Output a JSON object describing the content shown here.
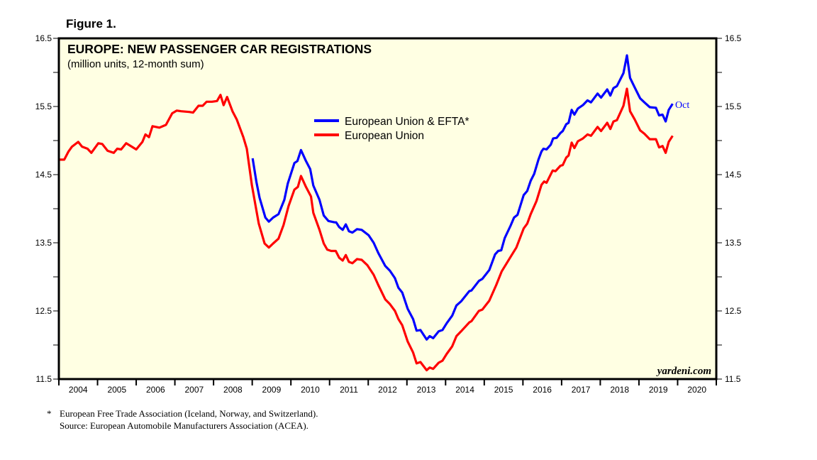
{
  "figure_label": "Figure 1.",
  "chart_data": {
    "type": "line",
    "title": "EUROPE: NEW PASSENGER CAR REGISTRATIONS",
    "subtitle": "(million units, 12-month sum)",
    "xlabel": "",
    "ylabel": "",
    "xlim": [
      2004,
      2021
    ],
    "ylim": [
      11.5,
      16.5
    ],
    "x_tick_labels": [
      "2004",
      "2005",
      "2006",
      "2007",
      "2008",
      "2009",
      "2010",
      "2011",
      "2012",
      "2013",
      "2014",
      "2015",
      "2016",
      "2017",
      "2018",
      "2019",
      "2020"
    ],
    "y_tick_labels": [
      "16.5",
      "15.5",
      "14.5",
      "13.5",
      "12.5",
      "11.5"
    ],
    "y_axes": "left and right",
    "grid": false,
    "background": "#FFFFE3",
    "legend_placement": "upper-center",
    "end_label": "Oct",
    "watermark": "yardeni.com",
    "series": [
      {
        "name": "European Union & EFTA*",
        "color": "#0000FF",
        "x": [
          2009.01,
          2009.11,
          2009.19,
          2009.34,
          2009.43,
          2009.54,
          2009.68,
          2009.83,
          2009.92,
          2010.09,
          2010.17,
          2010.26,
          2010.39,
          2010.5,
          2010.58,
          2010.74,
          2010.85,
          2010.97,
          2011.13,
          2011.17,
          2011.25,
          2011.34,
          2011.42,
          2011.5,
          2011.59,
          2011.71,
          2011.83,
          2012.01,
          2012.14,
          2012.26,
          2012.44,
          2012.56,
          2012.69,
          2012.78,
          2012.88,
          2013.02,
          2013.16,
          2013.25,
          2013.35,
          2013.51,
          2013.59,
          2013.68,
          2013.82,
          2013.92,
          2014.03,
          2014.17,
          2014.28,
          2014.4,
          2014.61,
          2014.67,
          2014.86,
          2014.95,
          2015.13,
          2015.28,
          2015.36,
          2015.44,
          2015.53,
          2015.68,
          2015.77,
          2015.86,
          2016.02,
          2016.11,
          2016.2,
          2016.29,
          2016.4,
          2016.48,
          2016.53,
          2016.61,
          2016.72,
          2016.78,
          2016.87,
          2016.97,
          2017.03,
          2017.12,
          2017.18,
          2017.26,
          2017.33,
          2017.42,
          2017.55,
          2017.67,
          2017.76,
          2017.93,
          2018.02,
          2018.18,
          2018.26,
          2018.34,
          2018.43,
          2018.6,
          2018.69,
          2018.77,
          2018.89,
          2019.03,
          2019.14,
          2019.28,
          2019.44,
          2019.52,
          2019.61,
          2019.69,
          2019.77,
          2019.87
        ],
        "y": [
          14.74,
          14.39,
          14.16,
          13.87,
          13.81,
          13.87,
          13.92,
          14.13,
          14.37,
          14.67,
          14.7,
          14.86,
          14.7,
          14.58,
          14.34,
          14.13,
          13.9,
          13.82,
          13.8,
          13.8,
          13.73,
          13.69,
          13.77,
          13.67,
          13.65,
          13.7,
          13.69,
          13.61,
          13.5,
          13.35,
          13.16,
          13.09,
          12.98,
          12.84,
          12.77,
          12.53,
          12.38,
          12.21,
          12.22,
          12.08,
          12.13,
          12.1,
          12.2,
          12.22,
          12.32,
          12.43,
          12.58,
          12.64,
          12.79,
          12.8,
          12.94,
          12.97,
          13.1,
          13.33,
          13.38,
          13.39,
          13.57,
          13.75,
          13.87,
          13.91,
          14.2,
          14.26,
          14.41,
          14.51,
          14.72,
          14.84,
          14.88,
          14.87,
          14.94,
          15.03,
          15.04,
          15.11,
          15.14,
          15.24,
          15.26,
          15.45,
          15.38,
          15.47,
          15.52,
          15.59,
          15.56,
          15.69,
          15.63,
          15.75,
          15.66,
          15.77,
          15.8,
          15.99,
          16.25,
          15.92,
          15.78,
          15.62,
          15.56,
          15.49,
          15.48,
          15.37,
          15.38,
          15.28,
          15.45,
          15.54
        ]
      },
      {
        "name": "European Union",
        "color": "#FF0000",
        "x": [
          2004.0,
          2004.14,
          2004.25,
          2004.34,
          2004.5,
          2004.6,
          2004.74,
          2004.84,
          2005.02,
          2005.12,
          2005.26,
          2005.42,
          2005.51,
          2005.61,
          2005.74,
          2006.0,
          2006.16,
          2006.24,
          2006.33,
          2006.42,
          2006.6,
          2006.77,
          2006.93,
          2007.05,
          2007.16,
          2007.37,
          2007.47,
          2007.61,
          2007.72,
          2007.82,
          2007.96,
          2008.09,
          2008.18,
          2008.26,
          2008.35,
          2008.49,
          2008.6,
          2008.77,
          2008.86,
          2008.99,
          2009.11,
          2009.17,
          2009.32,
          2009.43,
          2009.54,
          2009.68,
          2009.81,
          2009.94,
          2010.09,
          2010.18,
          2010.26,
          2010.39,
          2010.52,
          2010.58,
          2010.74,
          2010.85,
          2010.94,
          2011.04,
          2011.16,
          2011.25,
          2011.34,
          2011.42,
          2011.5,
          2011.59,
          2011.71,
          2011.83,
          2011.98,
          2012.14,
          2012.26,
          2012.44,
          2012.56,
          2012.69,
          2012.78,
          2012.88,
          2013.02,
          2013.16,
          2013.25,
          2013.35,
          2013.51,
          2013.59,
          2013.68,
          2013.82,
          2013.92,
          2014.03,
          2014.17,
          2014.28,
          2014.4,
          2014.61,
          2014.67,
          2014.86,
          2014.95,
          2015.13,
          2015.31,
          2015.45,
          2015.71,
          2015.83,
          2016.02,
          2016.11,
          2016.2,
          2016.35,
          2016.48,
          2016.55,
          2016.61,
          2016.77,
          2016.84,
          2016.97,
          2017.03,
          2017.12,
          2017.18,
          2017.26,
          2017.33,
          2017.42,
          2017.55,
          2017.67,
          2017.76,
          2017.93,
          2018.02,
          2018.18,
          2018.26,
          2018.34,
          2018.43,
          2018.6,
          2018.69,
          2018.77,
          2018.89,
          2019.03,
          2019.14,
          2019.28,
          2019.44,
          2019.52,
          2019.61,
          2019.69,
          2019.77,
          2019.87
        ],
        "y": [
          14.72,
          14.72,
          14.84,
          14.91,
          14.98,
          14.91,
          14.88,
          14.82,
          14.96,
          14.95,
          14.85,
          14.82,
          14.88,
          14.87,
          14.96,
          14.87,
          14.98,
          15.09,
          15.05,
          15.21,
          15.19,
          15.23,
          15.4,
          15.44,
          15.43,
          15.42,
          15.41,
          15.51,
          15.51,
          15.57,
          15.57,
          15.58,
          15.67,
          15.52,
          15.64,
          15.43,
          15.31,
          15.05,
          14.88,
          14.35,
          13.97,
          13.78,
          13.49,
          13.43,
          13.49,
          13.56,
          13.76,
          14.04,
          14.28,
          14.32,
          14.48,
          14.32,
          14.18,
          13.94,
          13.69,
          13.49,
          13.4,
          13.38,
          13.38,
          13.28,
          13.24,
          13.32,
          13.22,
          13.2,
          13.26,
          13.25,
          13.17,
          13.03,
          12.88,
          12.67,
          12.6,
          12.5,
          12.38,
          12.29,
          12.05,
          11.89,
          11.73,
          11.75,
          11.63,
          11.67,
          11.65,
          11.74,
          11.77,
          11.87,
          11.98,
          12.13,
          12.2,
          12.33,
          12.35,
          12.5,
          12.52,
          12.65,
          12.88,
          13.08,
          13.32,
          13.43,
          13.71,
          13.78,
          13.92,
          14.11,
          14.35,
          14.4,
          14.38,
          14.56,
          14.55,
          14.63,
          14.64,
          14.75,
          14.78,
          14.97,
          14.89,
          14.99,
          15.03,
          15.09,
          15.07,
          15.2,
          15.14,
          15.26,
          15.17,
          15.28,
          15.3,
          15.51,
          15.76,
          15.43,
          15.31,
          15.15,
          15.1,
          15.02,
          15.02,
          14.9,
          14.92,
          14.82,
          14.98,
          15.07
        ]
      }
    ]
  },
  "footnotes": {
    "marker": "*",
    "line1": "European Free Trade Association (Iceland, Norway, and Switzerland).",
    "line2": "Source: European Automobile Manufacturers Association (ACEA)."
  }
}
